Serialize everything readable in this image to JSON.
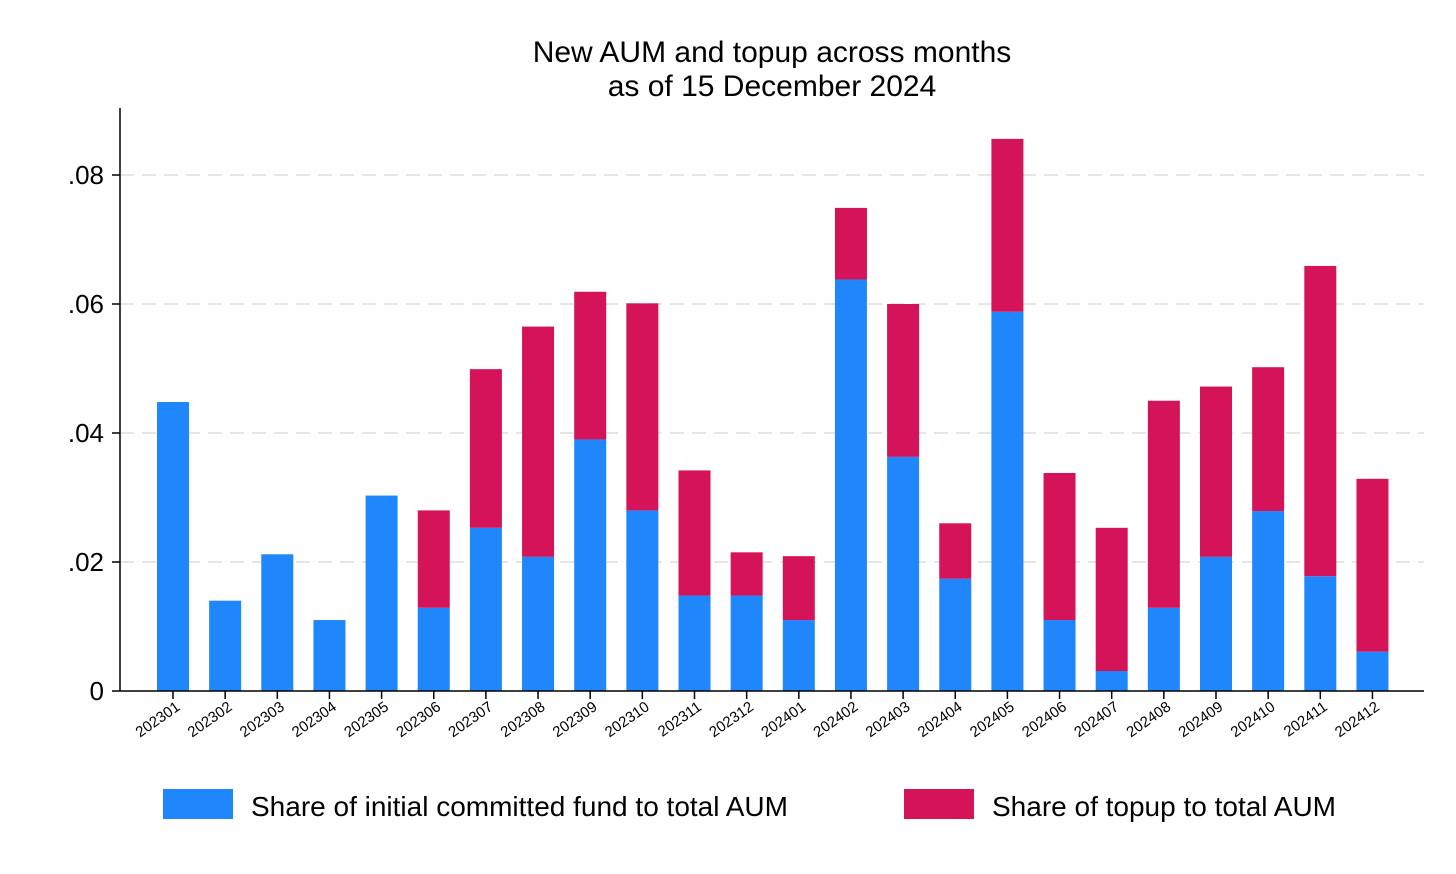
{
  "chart_data": {
    "type": "bar",
    "stacked": true,
    "title": "New AUM and topup across months",
    "subtitle": "as of 15 December 2024",
    "xlabel": "",
    "ylabel": "",
    "ylim": [
      0,
      0.09
    ],
    "yticks": [
      {
        "value": 0,
        "label": "0"
      },
      {
        "value": 0.02,
        "label": ".02"
      },
      {
        "value": 0.04,
        "label": ".04"
      },
      {
        "value": 0.06,
        "label": ".06"
      },
      {
        "value": 0.08,
        "label": ".08"
      }
    ],
    "grid": "horizontal-dashed",
    "legend_position": "bottom",
    "categories": [
      "202301",
      "202302",
      "202303",
      "202304",
      "202305",
      "202306",
      "202307",
      "202308",
      "202309",
      "202310",
      "202311",
      "202312",
      "202401",
      "202402",
      "202403",
      "202404",
      "202405",
      "202406",
      "202407",
      "202408",
      "202409",
      "202410",
      "202411",
      "202412"
    ],
    "series": [
      {
        "name": "Share of initial committed fund to total AUM",
        "color": "#1f87fb",
        "values": [
          0.0448,
          0.014,
          0.0212,
          0.011,
          0.0303,
          0.0129,
          0.0253,
          0.0208,
          0.039,
          0.028,
          0.0148,
          0.0148,
          0.011,
          0.0638,
          0.0363,
          0.0174,
          0.0588,
          0.011,
          0.0031,
          0.0129,
          0.0208,
          0.0279,
          0.0178,
          0.0061
        ]
      },
      {
        "name": "Share of topup to total AUM",
        "color": "#d41359",
        "values": [
          0,
          0,
          0,
          0,
          0,
          0.0151,
          0.0246,
          0.0357,
          0.0229,
          0.0321,
          0.0194,
          0.0067,
          0.0099,
          0.0111,
          0.0237,
          0.0086,
          0.0268,
          0.0228,
          0.0222,
          0.0321,
          0.0264,
          0.0223,
          0.0481,
          0.0268
        ]
      }
    ]
  }
}
